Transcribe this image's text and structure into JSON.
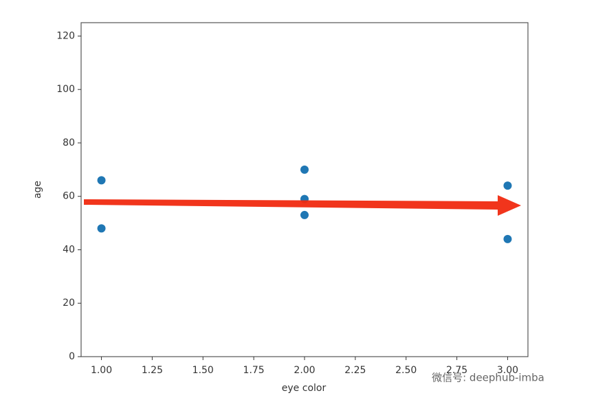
{
  "chart_data": {
    "type": "scatter",
    "x": [
      1,
      1,
      2,
      2,
      2,
      3,
      3
    ],
    "values": [
      66,
      48,
      70,
      59,
      53,
      64,
      44
    ],
    "color": "#1f77b4",
    "xlabel": "eye color",
    "ylabel": "age",
    "xlim": [
      0.9,
      3.1
    ],
    "ylim": [
      0,
      125
    ],
    "xticks": [
      {
        "value": 1,
        "label": "1.00"
      },
      {
        "value": 1.25,
        "label": "1.25"
      },
      {
        "value": 1.5,
        "label": "1.50"
      },
      {
        "value": 1.75,
        "label": "1.75"
      },
      {
        "value": 2,
        "label": "2.00"
      },
      {
        "value": 2.25,
        "label": "2.25"
      },
      {
        "value": 2.5,
        "label": "2.50"
      },
      {
        "value": 2.75,
        "label": "2.75"
      },
      {
        "value": 3,
        "label": "3.00"
      }
    ],
    "yticks": [
      0,
      20,
      40,
      60,
      80,
      100,
      120
    ],
    "watermark": "微信号: deephub-imba"
  }
}
